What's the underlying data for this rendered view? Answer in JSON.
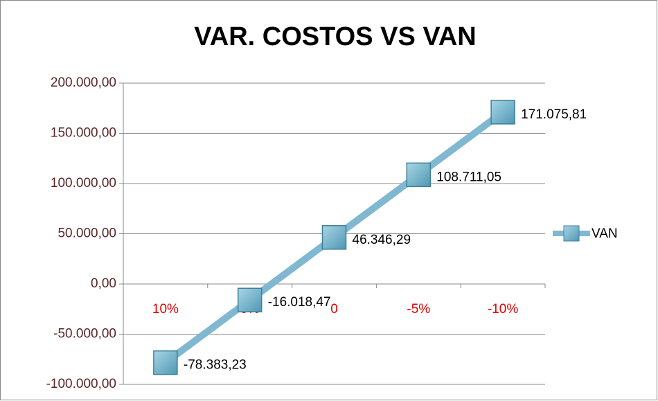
{
  "chart_data": {
    "type": "line",
    "title": "VAR. COSTOS VS VAN",
    "categories": [
      "10%",
      "5%",
      "0",
      "-5%",
      "-10%"
    ],
    "series": [
      {
        "name": "VAN",
        "color": "#7fb8d0",
        "values": [
          -78383.23,
          -16018.47,
          46346.29,
          108711.05,
          171075.81
        ],
        "value_labels": [
          "-78.383,23",
          "-16.018,47",
          "46.346,29",
          "108.711,05",
          "171.075,81"
        ]
      }
    ],
    "ylim": [
      -100000,
      200000
    ],
    "yticks": [
      {
        "value": -100000,
        "label": "-100.000,00"
      },
      {
        "value": -50000,
        "label": "-50.000,00"
      },
      {
        "value": 0,
        "label": "0,00"
      },
      {
        "value": 50000,
        "label": "50.000,00"
      },
      {
        "value": 100000,
        "label": "100.000,00"
      },
      {
        "value": 150000,
        "label": "150.000,00"
      },
      {
        "value": 200000,
        "label": "200.000,00"
      }
    ],
    "grid": true,
    "legend": "right"
  }
}
